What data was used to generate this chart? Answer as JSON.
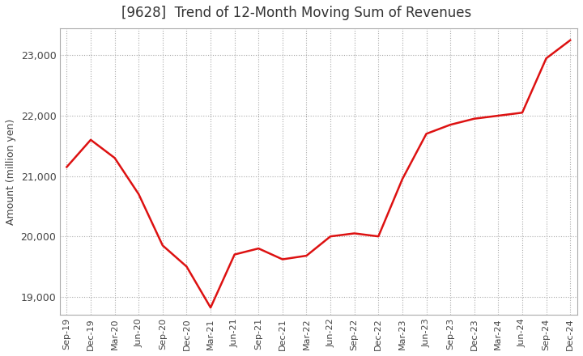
{
  "title": "[9628]  Trend of 12-Month Moving Sum of Revenues",
  "ylabel": "Amount (million yen)",
  "background_color": "#ffffff",
  "grid_color": "#aaaaaa",
  "line_color": "#dd1111",
  "title_fontsize": 12,
  "axis_fontsize": 9,
  "x_labels": [
    "Sep-19",
    "Dec-19",
    "Mar-20",
    "Jun-20",
    "Sep-20",
    "Dec-20",
    "Mar-21",
    "Jun-21",
    "Sep-21",
    "Dec-21",
    "Mar-22",
    "Jun-22",
    "Sep-22",
    "Dec-22",
    "Mar-23",
    "Jun-23",
    "Sep-23",
    "Dec-23",
    "Mar-24",
    "Jun-24",
    "Sep-24",
    "Dec-24"
  ],
  "y_values": [
    21150,
    21600,
    21300,
    20700,
    19850,
    19500,
    18820,
    19700,
    19800,
    19620,
    19680,
    20000,
    20050,
    20000,
    20950,
    21700,
    21850,
    21950,
    22000,
    22050,
    22950,
    23250
  ],
  "ylim": [
    18700,
    23450
  ],
  "yticks": [
    19000,
    20000,
    21000,
    22000,
    23000
  ],
  "ytick_labels": [
    "19,000",
    "20,000",
    "21,000",
    "22,000",
    "23,000"
  ]
}
